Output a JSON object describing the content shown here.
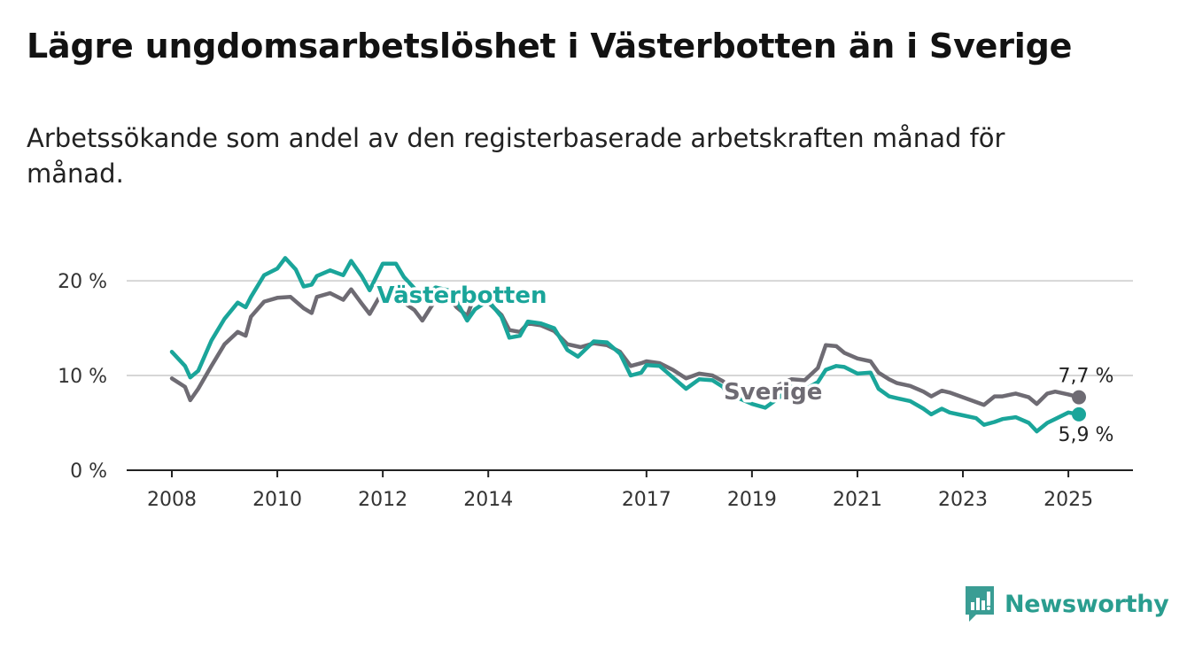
{
  "title": "Lägre ungdomsarbetslöshet i Västerbotten än i Sverige",
  "subtitle": "Arbetssökande som andel av den registerbaserade arbetskraften månad för månad.",
  "brand": {
    "name": "Newsworthy",
    "icon": "newsworthy-logo-icon",
    "color": "#3a9d94"
  },
  "chart_data": {
    "type": "line",
    "title": "Lägre ungdomsarbetslöshet i Västerbotten än i Sverige",
    "subtitle": "Arbetssökande som andel av den registerbaserade arbetskraften månad för månad.",
    "xlabel": "",
    "ylabel": "",
    "xlim": [
      2008,
      2025.2
    ],
    "ylim": [
      0,
      23
    ],
    "x_ticks": [
      2008,
      2010,
      2012,
      2014,
      2017,
      2019,
      2021,
      2023,
      2025
    ],
    "y_ticks": [
      {
        "value": 0,
        "label": "0 %"
      },
      {
        "value": 10,
        "label": "10 %"
      },
      {
        "value": 20,
        "label": "20 %"
      }
    ],
    "grid": true,
    "series": [
      {
        "name": "Sverige",
        "color": "#6e6b73",
        "end_label": "7,7 %",
        "points": [
          [
            2008.0,
            9.7
          ],
          [
            2008.25,
            8.8
          ],
          [
            2008.35,
            7.4
          ],
          [
            2008.5,
            8.6
          ],
          [
            2008.75,
            11.0
          ],
          [
            2009.0,
            13.3
          ],
          [
            2009.25,
            14.6
          ],
          [
            2009.4,
            14.2
          ],
          [
            2009.5,
            16.2
          ],
          [
            2009.75,
            17.8
          ],
          [
            2010.0,
            18.2
          ],
          [
            2010.25,
            18.3
          ],
          [
            2010.5,
            17.1
          ],
          [
            2010.65,
            16.6
          ],
          [
            2010.75,
            18.3
          ],
          [
            2011.0,
            18.7
          ],
          [
            2011.25,
            18.0
          ],
          [
            2011.4,
            19.1
          ],
          [
            2011.6,
            17.6
          ],
          [
            2011.75,
            16.5
          ],
          [
            2012.0,
            18.9
          ],
          [
            2012.25,
            19.1
          ],
          [
            2012.4,
            17.7
          ],
          [
            2012.6,
            16.9
          ],
          [
            2012.75,
            15.8
          ],
          [
            2013.0,
            18.0
          ],
          [
            2013.25,
            18.3
          ],
          [
            2013.4,
            17.2
          ],
          [
            2013.6,
            16.3
          ],
          [
            2013.75,
            18.6
          ],
          [
            2014.0,
            17.7
          ],
          [
            2014.25,
            16.4
          ],
          [
            2014.4,
            14.8
          ],
          [
            2014.6,
            14.6
          ],
          [
            2014.75,
            15.5
          ],
          [
            2015.0,
            15.3
          ],
          [
            2015.25,
            14.7
          ],
          [
            2015.5,
            13.3
          ],
          [
            2015.75,
            13.0
          ],
          [
            2016.0,
            13.4
          ],
          [
            2016.25,
            13.2
          ],
          [
            2016.5,
            12.5
          ],
          [
            2016.7,
            11.0
          ],
          [
            2016.9,
            11.3
          ],
          [
            2017.0,
            11.5
          ],
          [
            2017.25,
            11.3
          ],
          [
            2017.5,
            10.6
          ],
          [
            2017.75,
            9.7
          ],
          [
            2018.0,
            10.2
          ],
          [
            2018.25,
            10.0
          ],
          [
            2018.45,
            9.4
          ],
          [
            2018.6,
            8.7
          ],
          [
            2018.75,
            8.9
          ],
          [
            2019.0,
            8.5
          ],
          [
            2019.25,
            8.3
          ],
          [
            2019.5,
            9.0
          ],
          [
            2019.75,
            9.6
          ],
          [
            2020.0,
            9.5
          ],
          [
            2020.25,
            10.8
          ],
          [
            2020.4,
            13.2
          ],
          [
            2020.6,
            13.1
          ],
          [
            2020.75,
            12.4
          ],
          [
            2021.0,
            11.8
          ],
          [
            2021.25,
            11.5
          ],
          [
            2021.4,
            10.3
          ],
          [
            2021.6,
            9.6
          ],
          [
            2021.75,
            9.2
          ],
          [
            2022.0,
            8.9
          ],
          [
            2022.25,
            8.3
          ],
          [
            2022.4,
            7.8
          ],
          [
            2022.6,
            8.4
          ],
          [
            2022.75,
            8.2
          ],
          [
            2023.0,
            7.7
          ],
          [
            2023.25,
            7.2
          ],
          [
            2023.4,
            6.9
          ],
          [
            2023.6,
            7.8
          ],
          [
            2023.75,
            7.8
          ],
          [
            2024.0,
            8.1
          ],
          [
            2024.25,
            7.7
          ],
          [
            2024.4,
            7.0
          ],
          [
            2024.6,
            8.1
          ],
          [
            2024.75,
            8.3
          ],
          [
            2025.0,
            8.0
          ],
          [
            2025.2,
            7.7
          ]
        ]
      },
      {
        "name": "Västerbotten",
        "color": "#1aa59a",
        "end_label": "5,9 %",
        "points": [
          [
            2008.0,
            12.5
          ],
          [
            2008.25,
            11.0
          ],
          [
            2008.35,
            9.8
          ],
          [
            2008.5,
            10.5
          ],
          [
            2008.75,
            13.7
          ],
          [
            2009.0,
            16.0
          ],
          [
            2009.25,
            17.7
          ],
          [
            2009.4,
            17.2
          ],
          [
            2009.5,
            18.3
          ],
          [
            2009.75,
            20.6
          ],
          [
            2010.0,
            21.3
          ],
          [
            2010.15,
            22.4
          ],
          [
            2010.35,
            21.2
          ],
          [
            2010.5,
            19.4
          ],
          [
            2010.65,
            19.6
          ],
          [
            2010.75,
            20.5
          ],
          [
            2011.0,
            21.1
          ],
          [
            2011.25,
            20.6
          ],
          [
            2011.4,
            22.1
          ],
          [
            2011.6,
            20.5
          ],
          [
            2011.75,
            19.0
          ],
          [
            2012.0,
            21.8
          ],
          [
            2012.25,
            21.8
          ],
          [
            2012.4,
            20.4
          ],
          [
            2012.6,
            19.2
          ],
          [
            2012.75,
            18.2
          ],
          [
            2013.0,
            19.3
          ],
          [
            2013.25,
            19.0
          ],
          [
            2013.4,
            17.8
          ],
          [
            2013.6,
            15.8
          ],
          [
            2013.75,
            17.0
          ],
          [
            2014.0,
            17.9
          ],
          [
            2014.25,
            16.2
          ],
          [
            2014.4,
            14.0
          ],
          [
            2014.6,
            14.2
          ],
          [
            2014.75,
            15.7
          ],
          [
            2015.0,
            15.5
          ],
          [
            2015.25,
            15.0
          ],
          [
            2015.5,
            12.7
          ],
          [
            2015.7,
            12.0
          ],
          [
            2016.0,
            13.6
          ],
          [
            2016.25,
            13.5
          ],
          [
            2016.5,
            12.3
          ],
          [
            2016.7,
            10.0
          ],
          [
            2016.9,
            10.3
          ],
          [
            2017.0,
            11.1
          ],
          [
            2017.25,
            11.0
          ],
          [
            2017.5,
            9.8
          ],
          [
            2017.75,
            8.6
          ],
          [
            2018.0,
            9.6
          ],
          [
            2018.25,
            9.5
          ],
          [
            2018.45,
            8.8
          ],
          [
            2018.6,
            7.4
          ],
          [
            2018.75,
            7.6
          ],
          [
            2019.0,
            7.0
          ],
          [
            2019.25,
            6.6
          ],
          [
            2019.5,
            7.6
          ],
          [
            2019.75,
            8.8
          ],
          [
            2020.0,
            8.5
          ],
          [
            2020.25,
            9.3
          ],
          [
            2020.4,
            10.6
          ],
          [
            2020.6,
            11.0
          ],
          [
            2020.75,
            10.9
          ],
          [
            2021.0,
            10.2
          ],
          [
            2021.25,
            10.3
          ],
          [
            2021.4,
            8.6
          ],
          [
            2021.6,
            7.8
          ],
          [
            2021.75,
            7.6
          ],
          [
            2022.0,
            7.3
          ],
          [
            2022.25,
            6.5
          ],
          [
            2022.4,
            5.9
          ],
          [
            2022.6,
            6.5
          ],
          [
            2022.75,
            6.1
          ],
          [
            2023.0,
            5.8
          ],
          [
            2023.25,
            5.5
          ],
          [
            2023.4,
            4.8
          ],
          [
            2023.6,
            5.1
          ],
          [
            2023.75,
            5.4
          ],
          [
            2024.0,
            5.6
          ],
          [
            2024.25,
            5.0
          ],
          [
            2024.4,
            4.1
          ],
          [
            2024.6,
            5.0
          ],
          [
            2024.75,
            5.4
          ],
          [
            2025.0,
            6.1
          ],
          [
            2025.2,
            5.9
          ]
        ]
      }
    ],
    "annotations": [
      {
        "text": "Västerbotten",
        "series": "Västerbotten",
        "x": 2013.5,
        "y": 18.5
      },
      {
        "text": "Sverige",
        "series": "Sverige",
        "x": 2019.4,
        "y": 8.3
      }
    ]
  }
}
